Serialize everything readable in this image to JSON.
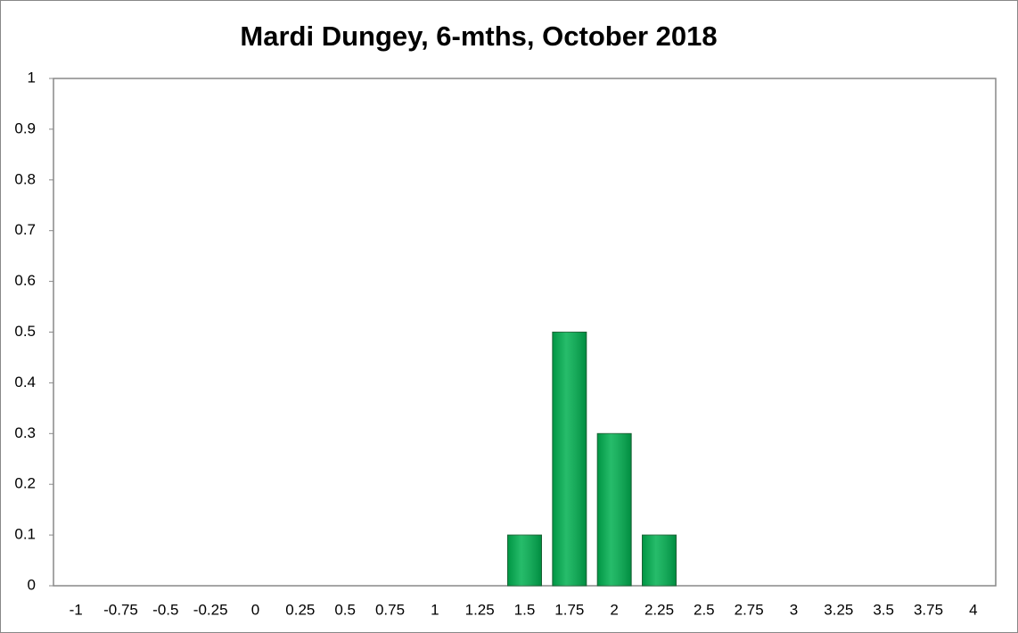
{
  "chart_data": {
    "type": "bar",
    "title": "Mardi Dungey, 6-mths, October 2018",
    "categories": [
      "-1",
      "-0.75",
      "-0.5",
      "-0.25",
      "0",
      "0.25",
      "0.5",
      "0.75",
      "1",
      "1.25",
      "1.5",
      "1.75",
      "2",
      "2.25",
      "2.5",
      "2.75",
      "3",
      "3.25",
      "3.5",
      "3.75",
      "4"
    ],
    "values": [
      0,
      0,
      0,
      0,
      0,
      0,
      0,
      0,
      0,
      0,
      0.1,
      0.5,
      0.3,
      0.1,
      0,
      0,
      0,
      0,
      0,
      0,
      0
    ],
    "color": "#00b050",
    "ylim": [
      0,
      1
    ],
    "yticks": [
      0,
      0.1,
      0.2,
      0.3,
      0.4,
      0.5,
      0.6,
      0.7,
      0.8,
      0.9,
      1
    ],
    "grid": false
  }
}
